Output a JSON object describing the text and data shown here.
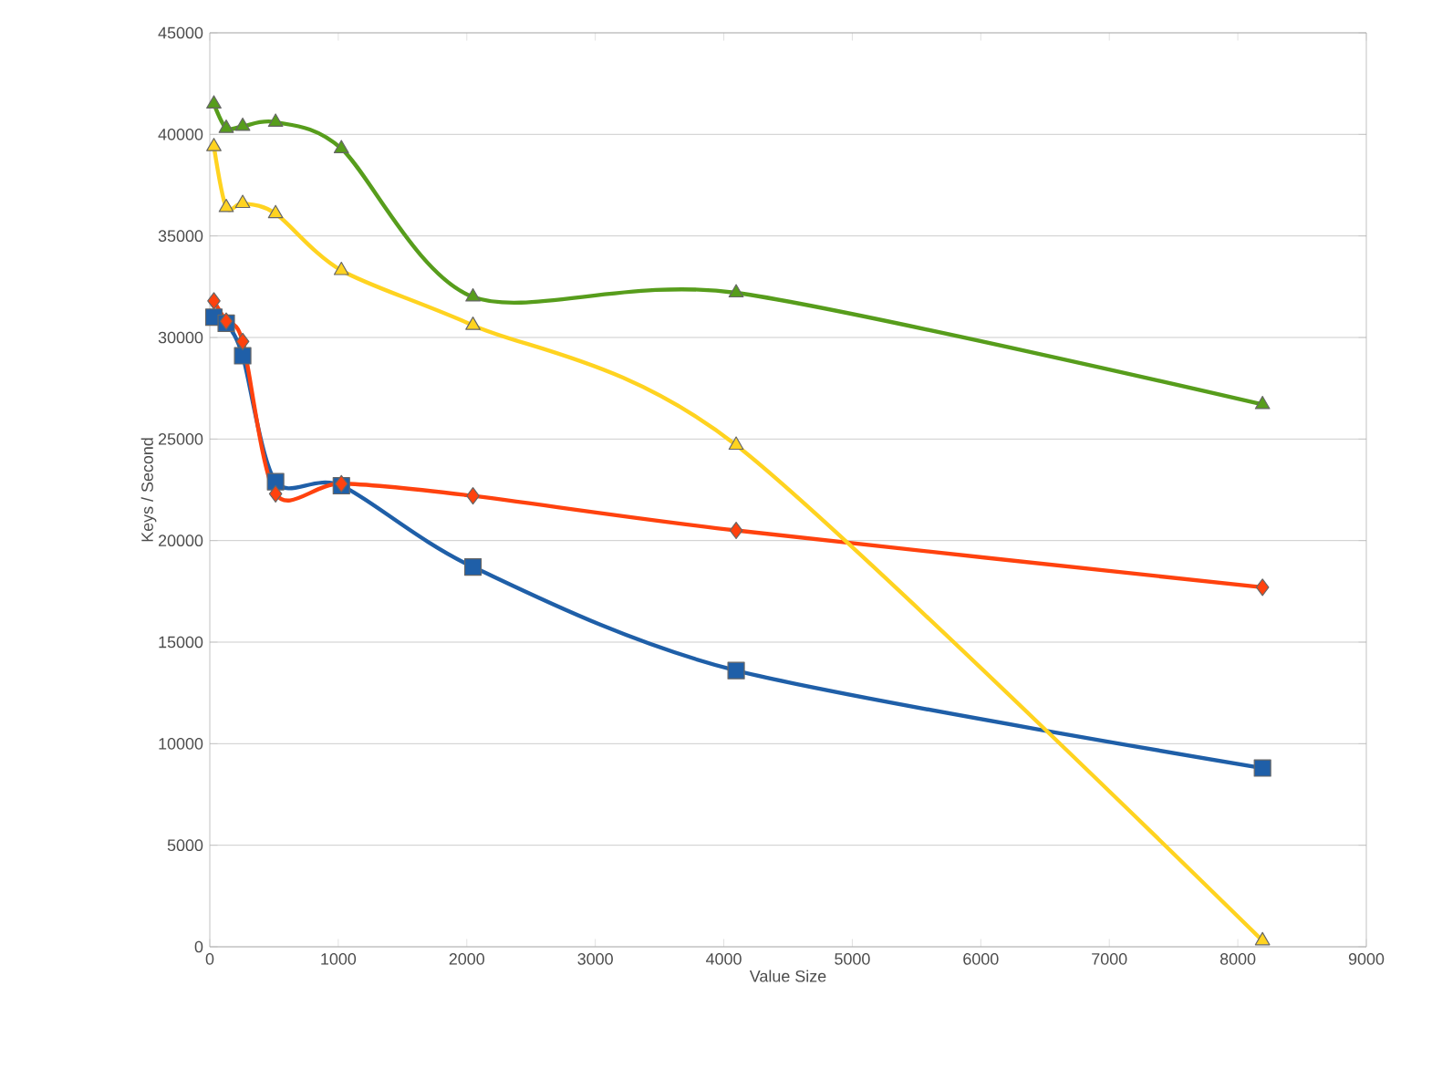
{
  "chart_data": {
    "type": "line",
    "xlabel": "Value Size",
    "ylabel": "Keys / Second",
    "x": [
      32,
      128,
      256,
      512,
      1024,
      2048,
      4096,
      8192
    ],
    "series": [
      {
        "color": "#1f5fa8",
        "marker": "square",
        "values": [
          31000,
          30700,
          29100,
          22900,
          22700,
          18700,
          13600,
          8800
        ]
      },
      {
        "color": "#ff420e",
        "marker": "diamond",
        "values": [
          31800,
          30800,
          29800,
          22300,
          22800,
          22200,
          20500,
          17700
        ]
      },
      {
        "color": "#ffd320",
        "marker": "triangle",
        "values": [
          39400,
          36400,
          36600,
          36100,
          33300,
          30600,
          24700,
          300
        ]
      },
      {
        "color": "#579d1c",
        "marker": "triangle",
        "values": [
          41500,
          40300,
          40400,
          40600,
          39300,
          32000,
          32200,
          26700
        ]
      }
    ],
    "xlim": [
      0,
      9000
    ],
    "xticks": [
      0,
      1000,
      2000,
      3000,
      4000,
      5000,
      6000,
      7000,
      8000,
      9000
    ],
    "ylim": [
      0,
      45000
    ],
    "yticks": [
      0,
      5000,
      10000,
      15000,
      20000,
      25000,
      30000,
      35000,
      40000,
      45000
    ],
    "grid": "y",
    "line_style": "solid"
  }
}
